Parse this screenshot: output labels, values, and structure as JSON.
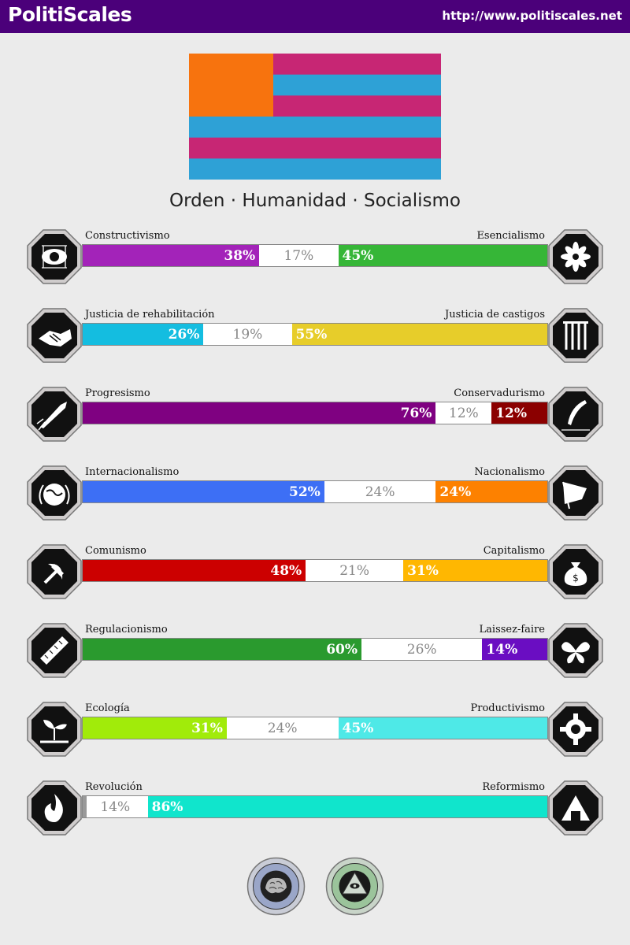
{
  "header": {
    "brand": "PolitiScales",
    "url": "http://www.politiscales.net"
  },
  "flag": {
    "stripes": [
      "#c72674",
      "#2ea1d6",
      "#c72674",
      "#2ea1d6",
      "#c72674",
      "#2ea1d6"
    ],
    "canton": "#f7730e"
  },
  "headline": "Orden · Humanidad · Socialismo",
  "axes": [
    {
      "left": "Constructivismo",
      "right": "Esencialismo",
      "left_pct": 38,
      "mid_pct": 17,
      "right_pct": 45,
      "left_value": "38%",
      "mid_value": "17%",
      "right_value": "45%",
      "left_color": "#a323b9",
      "right_color": "#36b637",
      "left_icon": "eye-icon",
      "right_icon": "flower-icon"
    },
    {
      "left": "Justicia de rehabilitación",
      "right": "Justicia de castigos",
      "left_pct": 26,
      "mid_pct": 19,
      "right_pct": 55,
      "left_value": "26%",
      "mid_value": "19%",
      "right_value": "55%",
      "left_color": "#14bde0",
      "right_color": "#e7cd2a",
      "left_icon": "handshake-icon",
      "right_icon": "prison-bars-icon"
    },
    {
      "left": "Progresismo",
      "right": "Conservadurismo",
      "left_pct": 76,
      "mid_pct": 12,
      "right_pct": 12,
      "left_value": "76%",
      "mid_value": "12%",
      "right_value": "12%",
      "left_color": "#7f0181",
      "right_color": "#8b0000",
      "left_icon": "rocket-icon",
      "right_icon": "quill-pen-icon"
    },
    {
      "left": "Internacionalismo",
      "right": "Nacionalismo",
      "left_pct": 52,
      "mid_pct": 24,
      "right_pct": 24,
      "left_value": "52%",
      "mid_value": "24%",
      "right_value": "24%",
      "left_color": "#3d6ff5",
      "right_color": "#fd8100",
      "left_icon": "globe-icon",
      "right_icon": "flag-icon"
    },
    {
      "left": "Comunismo",
      "right": "Capitalismo",
      "left_pct": 48,
      "mid_pct": 21,
      "right_pct": 31,
      "left_value": "48%",
      "mid_value": "21%",
      "right_value": "31%",
      "left_color": "#cc0000",
      "right_color": "#ffb701",
      "left_icon": "hammer-sickle-icon",
      "right_icon": "money-bag-icon"
    },
    {
      "left": "Regulacionismo",
      "right": "Laissez-faire",
      "left_pct": 60,
      "mid_pct": 26,
      "right_pct": 14,
      "left_value": "60%",
      "mid_value": "26%",
      "right_value": "14%",
      "left_color": "#2a9a2e",
      "right_color": "#6a0dc2",
      "left_icon": "ruler-icon",
      "right_icon": "butterfly-icon"
    },
    {
      "left": "Ecología",
      "right": "Productivismo",
      "left_pct": 31,
      "mid_pct": 24,
      "right_pct": 45,
      "left_value": "31%",
      "mid_value": "24%",
      "right_value": "45%",
      "left_color": "#a1eb0a",
      "right_color": "#4ee9e7",
      "left_icon": "sprout-icon",
      "right_icon": "gear-icon"
    },
    {
      "left": "Revolución",
      "right": "Reformismo",
      "left_pct": 0,
      "mid_pct": 14,
      "right_pct": 86,
      "left_value": "",
      "mid_value": "14%",
      "right_value": "86%",
      "left_color": "#999999",
      "right_color": "#10e5cc",
      "left_icon": "fire-icon",
      "right_icon": "building-icon"
    }
  ],
  "badges": [
    {
      "icon": "brain-seal-icon",
      "color": "#9aa6c8"
    },
    {
      "icon": "eye-pyramid-seal-icon",
      "color": "#9bc49b"
    }
  ]
}
